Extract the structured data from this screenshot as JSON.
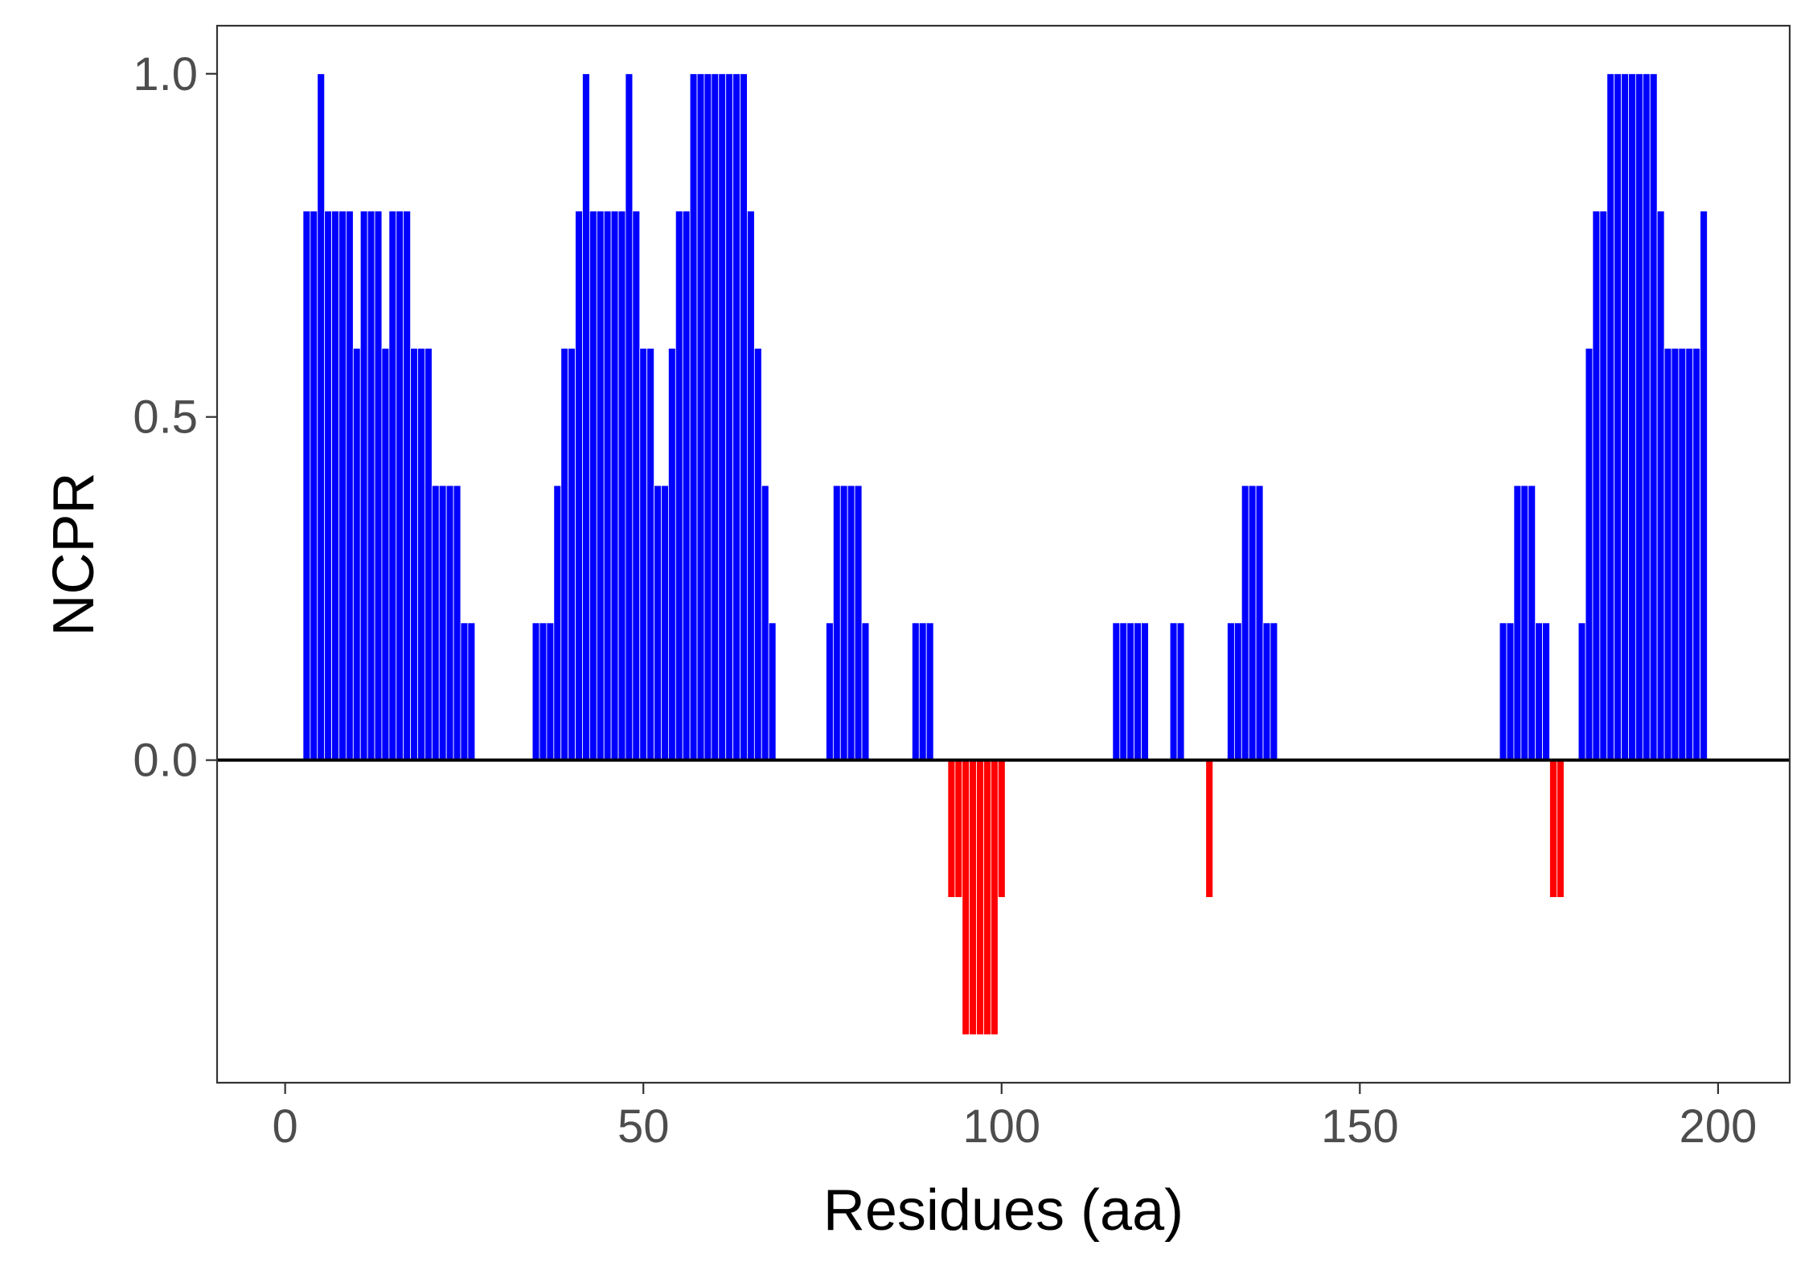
{
  "chart_data": {
    "type": "bar",
    "title": "",
    "xlabel": "Residues (aa)",
    "ylabel": "NCPR",
    "xlim": [
      -9.5,
      210
    ],
    "ylim": [
      -0.47,
      1.07
    ],
    "xticks": [
      0,
      50,
      100,
      150,
      200
    ],
    "xtick_labels": [
      "0",
      "50",
      "100",
      "150",
      "200"
    ],
    "yticks": [
      0.0,
      0.5,
      1.0
    ],
    "ytick_labels": [
      "0.0",
      "0.5",
      "1.0"
    ],
    "grid": false,
    "zero_line": true,
    "positive_color": "#0000ff",
    "negative_color": "#ff0000",
    "x": [
      3,
      4,
      5,
      6,
      7,
      8,
      9,
      10,
      11,
      12,
      13,
      14,
      15,
      16,
      17,
      18,
      19,
      20,
      21,
      22,
      23,
      24,
      25,
      26,
      27,
      28,
      29,
      30,
      31,
      32,
      33,
      34,
      35,
      36,
      37,
      38,
      39,
      40,
      41,
      42,
      43,
      44,
      45,
      46,
      47,
      48,
      49,
      50,
      51,
      52,
      53,
      54,
      55,
      56,
      57,
      58,
      59,
      60,
      61,
      62,
      63,
      64,
      65,
      66,
      67,
      68,
      69,
      70,
      71,
      72,
      73,
      74,
      75,
      76,
      77,
      78,
      79,
      80,
      81,
      82,
      83,
      84,
      85,
      86,
      87,
      88,
      89,
      90,
      91,
      92,
      93,
      94,
      95,
      96,
      97,
      98,
      99,
      100,
      101,
      102,
      103,
      104,
      105,
      106,
      107,
      108,
      109,
      110,
      111,
      112,
      113,
      114,
      115,
      116,
      117,
      118,
      119,
      120,
      121,
      122,
      123,
      124,
      125,
      126,
      127,
      128,
      129,
      130,
      131,
      132,
      133,
      134,
      135,
      136,
      137,
      138,
      139,
      140,
      141,
      142,
      143,
      144,
      145,
      146,
      147,
      148,
      149,
      150,
      151,
      152,
      153,
      154,
      155,
      156,
      157,
      158,
      159,
      160,
      161,
      162,
      163,
      164,
      165,
      166,
      167,
      168,
      169,
      170,
      171,
      172,
      173,
      174,
      175,
      176,
      177,
      178,
      179,
      180,
      181,
      182,
      183,
      184,
      185,
      186,
      187,
      188,
      189,
      190,
      191,
      192,
      193,
      194,
      195,
      196,
      197,
      198
    ],
    "values": [
      0.8,
      0.8,
      1.0,
      0.8,
      0.8,
      0.8,
      0.8,
      0.6,
      0.8,
      0.8,
      0.8,
      0.6,
      0.8,
      0.8,
      0.8,
      0.6,
      0.6,
      0.6,
      0.4,
      0.4,
      0.4,
      0.4,
      0.2,
      0.2,
      0,
      0,
      0,
      0,
      0,
      0,
      0,
      0,
      0.2,
      0.2,
      0.2,
      0.4,
      0.6,
      0.6,
      0.8,
      1.0,
      0.8,
      0.8,
      0.8,
      0.8,
      0.8,
      1.0,
      0.8,
      0.6,
      0.6,
      0.4,
      0.4,
      0.6,
      0.8,
      0.8,
      1.0,
      1.0,
      1.0,
      1.0,
      1.0,
      1.0,
      1.0,
      1.0,
      0.8,
      0.6,
      0.4,
      0.2,
      0,
      0,
      0,
      0,
      0,
      0,
      0,
      0.2,
      0.4,
      0.4,
      0.4,
      0.4,
      0.2,
      0,
      0,
      0,
      0,
      0,
      0,
      0.2,
      0.2,
      0.2,
      0,
      0,
      -0.2,
      -0.2,
      -0.4,
      -0.4,
      -0.4,
      -0.4,
      -0.4,
      -0.2,
      0,
      0,
      0,
      0,
      0,
      0,
      0,
      0,
      0,
      0,
      0,
      0,
      0,
      0,
      0,
      0.2,
      0.2,
      0.2,
      0.2,
      0.2,
      0,
      0,
      0,
      0.2,
      0.2,
      0,
      0,
      0,
      -0.2,
      0,
      0,
      0.2,
      0.2,
      0.4,
      0.4,
      0.4,
      0.2,
      0.2,
      0,
      0,
      0,
      0,
      0,
      0,
      0,
      0,
      0,
      0,
      0,
      0,
      0,
      0,
      0,
      0,
      0,
      0,
      0,
      0,
      0,
      0,
      0,
      0,
      0,
      0,
      0,
      0,
      0,
      0,
      0,
      0.2,
      0.2,
      0.4,
      0.4,
      0.4,
      0.2,
      0.2,
      -0.2,
      -0.2,
      0,
      0,
      0.2,
      0.6,
      0.8,
      0.8,
      1.0,
      1.0,
      1.0,
      1.0,
      1.0,
      1.0,
      1.0,
      0.8,
      0.6,
      0.6,
      0.6,
      0.6,
      0.6,
      0.8
    ]
  }
}
